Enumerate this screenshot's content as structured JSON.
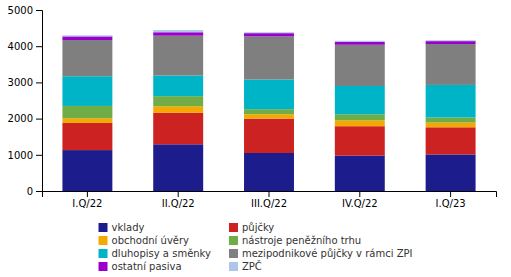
{
  "chart_data": {
    "type": "bar",
    "stacked": true,
    "legend": "bottom",
    "grid": false,
    "categories": [
      "I.Q/22",
      "II.Q/22",
      "III.Q/22",
      "IV.Q/22",
      "I.Q/23"
    ],
    "series": [
      {
        "name": "vklady",
        "color": "#1c1c8c",
        "values": [
          1130,
          1290,
          1050,
          980,
          1010
        ]
      },
      {
        "name": "půjčky",
        "color": "#cc2222",
        "values": [
          750,
          870,
          950,
          810,
          750
        ]
      },
      {
        "name": "obchodní úvěry",
        "color": "#f5a800",
        "values": [
          130,
          180,
          120,
          160,
          130
        ]
      },
      {
        "name": "nástroje peněžního trhu",
        "color": "#70ad47",
        "values": [
          340,
          280,
          140,
          170,
          140
        ]
      },
      {
        "name": "dluhopisy a směnky",
        "color": "#00b4c8",
        "values": [
          820,
          570,
          820,
          780,
          900
        ]
      },
      {
        "name": "mezipodnikové půjčky v rámci ZPI",
        "color": "#7f7f7f",
        "values": [
          1000,
          1100,
          1190,
          1140,
          1130
        ]
      },
      {
        "name": "ostatní pasiva",
        "color": "#9900cc",
        "values": [
          100,
          95,
          90,
          80,
          80
        ]
      },
      {
        "name": "ZPČ",
        "color": "#aec6e8",
        "values": [
          30,
          60,
          25,
          30,
          25
        ]
      }
    ],
    "ylim": [
      0,
      5000
    ],
    "yticks": [
      0,
      1000,
      2000,
      3000,
      4000,
      5000
    ]
  }
}
